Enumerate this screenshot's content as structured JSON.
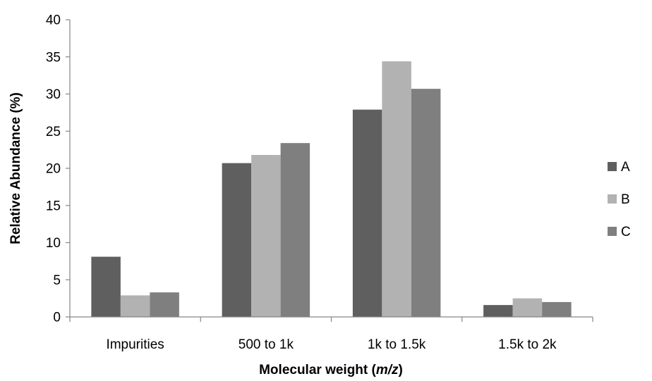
{
  "chart_data": {
    "type": "bar",
    "categories": [
      "Impurities",
      "500 to 1k",
      "1k to 1.5k",
      "1.5k to 2k"
    ],
    "series": [
      {
        "name": "A",
        "color": "#5f5f5f",
        "values": [
          8.1,
          20.7,
          27.9,
          1.6
        ]
      },
      {
        "name": "B",
        "color": "#b2b2b2",
        "values": [
          2.9,
          21.8,
          34.4,
          2.5
        ]
      },
      {
        "name": "C",
        "color": "#7f7f7f",
        "values": [
          3.3,
          23.4,
          30.7,
          2.0
        ]
      }
    ],
    "xlabel_main": "Molecular weight (",
    "xlabel_italic": "m/z",
    "xlabel_end": ")",
    "ylabel": "Relative Abundance (%)",
    "ylim": [
      0,
      40
    ],
    "yticks": [
      "0",
      "5",
      "10",
      "15",
      "20",
      "25",
      "30",
      "35",
      "40"
    ],
    "grid": false,
    "legend": "right"
  }
}
